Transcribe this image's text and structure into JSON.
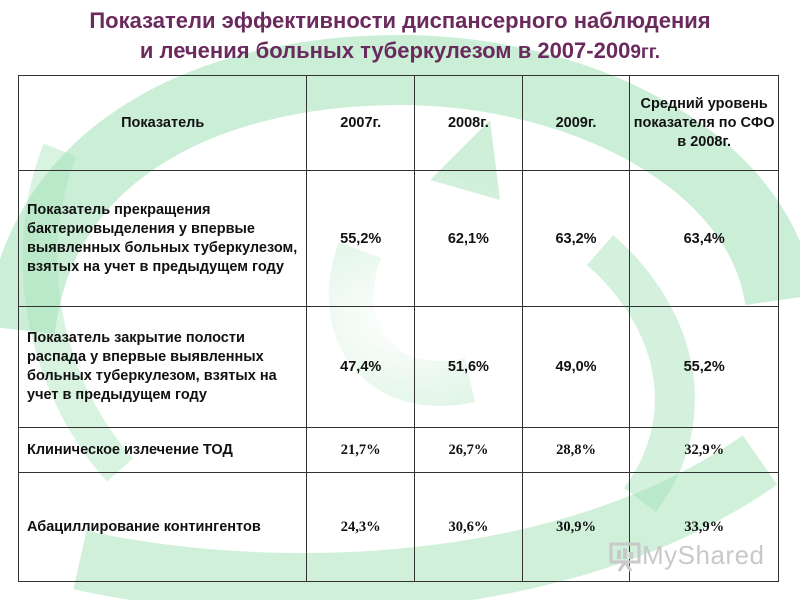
{
  "title": {
    "line1": "Показатели эффективности диспансерного наблюдения",
    "line2": "и лечения больных туберкулезом в 2007-200",
    "line2_suffix": "9гг."
  },
  "table": {
    "headers": [
      "Показатель",
      "2007г.",
      "2008г.",
      "2009г.",
      "Средний уровень показателя по СФО в 2008г."
    ],
    "rows": [
      {
        "name": "Показатель прекращения бактериовыделения у впервые выявленных больных туберкулезом, взятых на учет в предыдущем году",
        "values": [
          "55,2%",
          "62,1%",
          "63,2%",
          "63,4%"
        ]
      },
      {
        "name": " Показатель закрытие полости распада у впервые выявленных больных туберкулезом,  взятых на учет в предыдущем году",
        "values": [
          "47,4%",
          "51,6%",
          "49,0%",
          "55,2%"
        ]
      },
      {
        "name": " Клиническое  излечение  ТОД",
        "values": [
          "21,7%",
          "26,7%",
          "28,8%",
          "32,9%"
        ]
      },
      {
        "name": "Абациллирование контингентов",
        "values": [
          "24,3%",
          "30,6%",
          "30,9%",
          "33,9%"
        ]
      }
    ]
  },
  "watermark": {
    "text": "MyShared"
  },
  "colors": {
    "title": "#6b2a5e",
    "background_swirl": "#7fd39a"
  }
}
